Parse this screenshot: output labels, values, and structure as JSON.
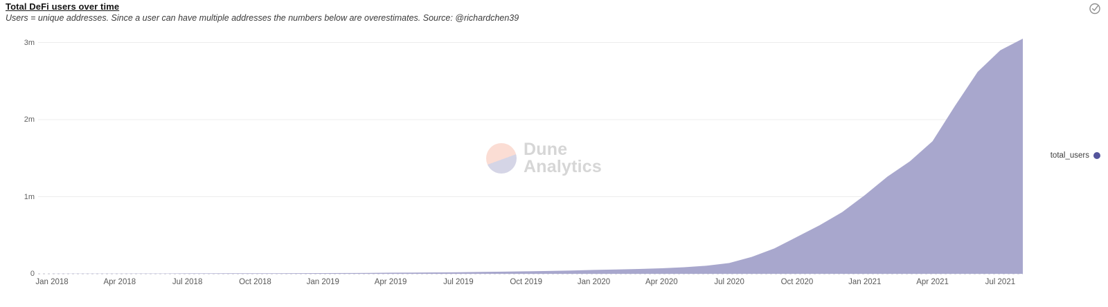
{
  "header": {
    "title": "Total DeFi users over time",
    "subtitle": "Users = unique addresses. Since a user can have multiple addresses the numbers below are overestimates. Source: @richardchen39"
  },
  "status_icon": "check-circle",
  "watermark": {
    "line1": "Dune",
    "line2": "Analytics"
  },
  "legend": {
    "label": "total_users",
    "dot_color": "#54559c"
  },
  "colors": {
    "area_fill": "#a8a7cd",
    "gridline": "#ececec",
    "baseline": "#bcbcca",
    "axis_text": "#5a5a5a",
    "background": "#ffffff"
  },
  "chart_data": {
    "type": "area",
    "title": "Total DeFi users over time",
    "unit": "millions of users",
    "legend_position": "right",
    "grid": "horizontal",
    "x": [
      "2018-01",
      "2018-02",
      "2018-03",
      "2018-04",
      "2018-05",
      "2018-06",
      "2018-07",
      "2018-08",
      "2018-09",
      "2018-10",
      "2018-11",
      "2018-12",
      "2019-01",
      "2019-02",
      "2019-03",
      "2019-04",
      "2019-05",
      "2019-06",
      "2019-07",
      "2019-08",
      "2019-09",
      "2019-10",
      "2019-11",
      "2019-12",
      "2020-01",
      "2020-02",
      "2020-03",
      "2020-04",
      "2020-05",
      "2020-06",
      "2020-07",
      "2020-08",
      "2020-09",
      "2020-10",
      "2020-11",
      "2020-12",
      "2021-01",
      "2021-02",
      "2021-03",
      "2021-04",
      "2021-05",
      "2021-06",
      "2021-07",
      "2021-08"
    ],
    "series": [
      {
        "name": "total_users",
        "values": [
          0.001,
          0.002,
          0.002,
          0.003,
          0.004,
          0.004,
          0.005,
          0.005,
          0.006,
          0.006,
          0.007,
          0.008,
          0.009,
          0.01,
          0.012,
          0.014,
          0.016,
          0.018,
          0.021,
          0.024,
          0.028,
          0.032,
          0.037,
          0.043,
          0.05,
          0.056,
          0.063,
          0.072,
          0.085,
          0.105,
          0.14,
          0.22,
          0.33,
          0.48,
          0.63,
          0.8,
          1.02,
          1.26,
          1.46,
          1.72,
          2.18,
          2.62,
          2.9,
          3.05
        ]
      }
    ],
    "x_tick_labels": [
      "Jan 2018",
      "Apr 2018",
      "Jul 2018",
      "Oct 2018",
      "Jan 2019",
      "Apr 2019",
      "Jul 2019",
      "Oct 2019",
      "Jan 2020",
      "Apr 2020",
      "Jul 2020",
      "Oct 2020",
      "Jan 2021",
      "Apr 2021",
      "Jul 2021"
    ],
    "y_tick_labels": [
      "0",
      "1m",
      "2m",
      "3m"
    ],
    "y_tick_values": [
      0,
      1,
      2,
      3
    ],
    "ylim": [
      0,
      3.1
    ]
  }
}
